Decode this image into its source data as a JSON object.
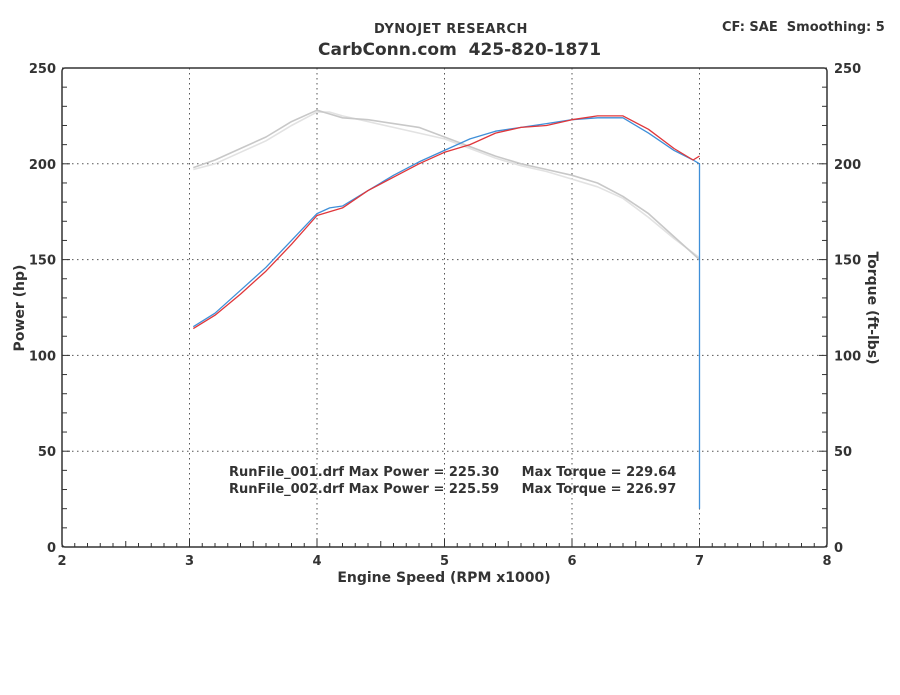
{
  "header": {
    "title": "DYNOJET RESEARCH",
    "subtitle": "CarbConn.com  425-820-1871",
    "correction": "CF: SAE  Smoothing: 5"
  },
  "chart_data": {
    "type": "line",
    "xlabel": "Engine Speed (RPM x1000)",
    "ylabel_left": "Power (hp)",
    "ylabel_right": "Torque (ft-lbs)",
    "xlim": [
      2,
      8
    ],
    "ylim_left": [
      0,
      250
    ],
    "ylim_right": [
      0,
      250
    ],
    "xticks": [
      2,
      3,
      4,
      5,
      6,
      7,
      8
    ],
    "yticks": [
      0,
      50,
      100,
      150,
      200,
      250
    ],
    "grid": true,
    "colors": {
      "run1_power": "#3f8fd8",
      "run2_power": "#e0363a",
      "run1_torque": "#c8c8c8",
      "run2_torque": "#e2e2e2",
      "grid": "#555555",
      "axis": "#333333"
    },
    "series": [
      {
        "key": "run1_power",
        "axis": "left",
        "x": [
          3.03,
          3.2,
          3.4,
          3.6,
          3.8,
          4.0,
          4.1,
          4.2,
          4.4,
          4.6,
          4.8,
          5.0,
          5.2,
          5.4,
          5.6,
          5.8,
          6.0,
          6.2,
          6.4,
          6.6,
          6.8,
          6.95,
          7.0,
          7.0,
          7.0
        ],
        "y": [
          115,
          122,
          134,
          146,
          160,
          174,
          177,
          178,
          186,
          194,
          201,
          207,
          213,
          217,
          219,
          221,
          223,
          224,
          224,
          216,
          207,
          202,
          200,
          40,
          20
        ]
      },
      {
        "key": "run2_power",
        "axis": "left",
        "x": [
          3.03,
          3.2,
          3.4,
          3.6,
          3.8,
          4.0,
          4.2,
          4.4,
          4.6,
          4.8,
          5.0,
          5.2,
          5.4,
          5.6,
          5.8,
          6.0,
          6.2,
          6.4,
          6.6,
          6.8,
          6.95,
          7.0
        ],
        "y": [
          114,
          121,
          132,
          144,
          158,
          173,
          177,
          186,
          193,
          200,
          206,
          210,
          216,
          219,
          220,
          223,
          225,
          225,
          218,
          208,
          202,
          204
        ]
      },
      {
        "key": "run1_torque",
        "axis": "right",
        "x": [
          3.03,
          3.2,
          3.4,
          3.6,
          3.8,
          4.0,
          4.1,
          4.2,
          4.4,
          4.6,
          4.8,
          5.0,
          5.2,
          5.4,
          5.6,
          5.8,
          6.0,
          6.2,
          6.4,
          6.6,
          6.8,
          7.0
        ],
        "y": [
          198,
          202,
          208,
          214,
          222,
          228,
          226,
          224,
          223,
          221,
          219,
          214,
          209,
          204,
          200,
          197,
          194,
          190,
          183,
          174,
          162,
          150
        ]
      },
      {
        "key": "run2_torque",
        "axis": "right",
        "x": [
          3.03,
          3.2,
          3.4,
          3.6,
          3.8,
          4.0,
          4.1,
          4.2,
          4.4,
          4.6,
          4.8,
          5.0,
          5.2,
          5.4,
          5.6,
          5.8,
          6.0,
          6.2,
          6.4,
          6.6,
          6.8,
          7.0
        ],
        "y": [
          197,
          200,
          206,
          212,
          220,
          227,
          227,
          225,
          222,
          219,
          216,
          213,
          208,
          203,
          199,
          196,
          192,
          188,
          182,
          172,
          161,
          151
        ]
      }
    ],
    "annotations": [
      "RunFile_001.drf Max Power = 225.30     Max Torque = 229.64",
      "RunFile_002.drf Max Power = 225.59     Max Torque = 226.97"
    ]
  }
}
